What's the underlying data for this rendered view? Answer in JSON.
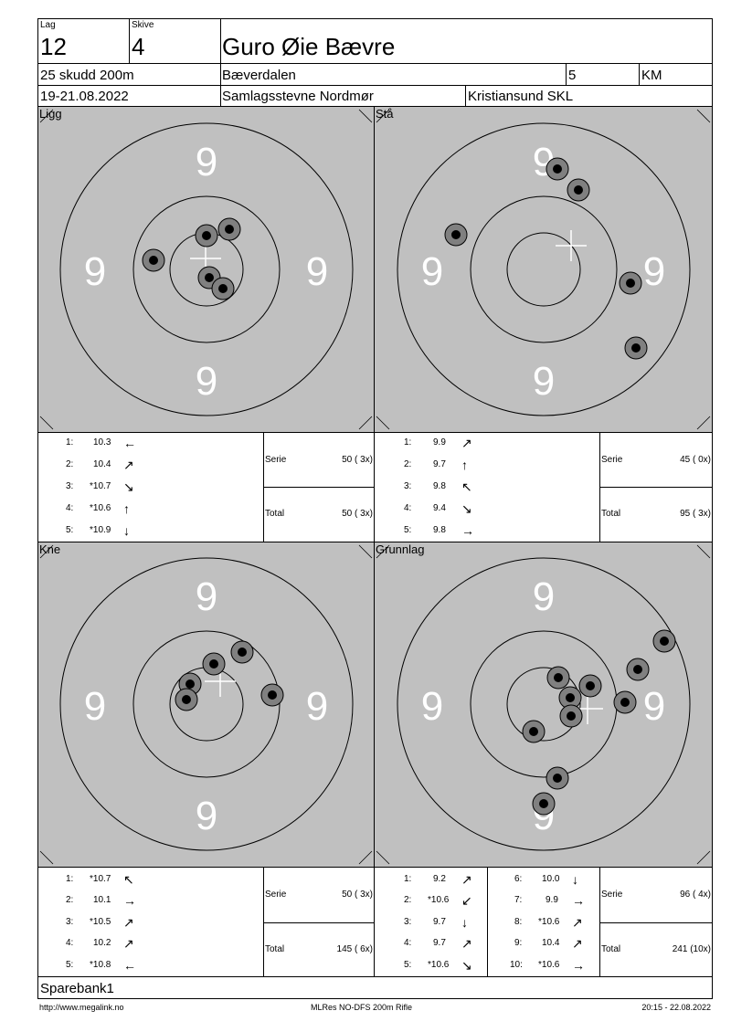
{
  "header": {
    "lag_label": "Lag",
    "lag_value": "12",
    "skive_label": "Skive",
    "skive_value": "4",
    "name": "Guro Øie Bævre",
    "program": "25 skudd 200m",
    "club": "Bæverdalen",
    "class": "5",
    "code": "KM",
    "dates": "19-21.08.2022",
    "event": "Samlagsstevne Nordmør",
    "organizer": "Kristiansund SKL"
  },
  "ring_label": "9",
  "targets": [
    {
      "title": "Ligg",
      "shots": [
        {
          "n": "1:",
          "score": "10.3",
          "dir": "←"
        },
        {
          "n": "2:",
          "score": "10.4",
          "dir": "↗"
        },
        {
          "n": "3:",
          "score": "*10.7",
          "dir": "↘"
        },
        {
          "n": "4:",
          "score": "*10.6",
          "dir": "↑"
        },
        {
          "n": "5:",
          "score": "*10.9",
          "dir": "↓"
        }
      ],
      "serie_label": "Serie",
      "serie_value": "50 ( 3x)",
      "total_label": "Total",
      "total_value": "50 ( 3x)"
    },
    {
      "title": "Stå",
      "shots": [
        {
          "n": "1:",
          "score": "9.9",
          "dir": "↗"
        },
        {
          "n": "2:",
          "score": "9.7",
          "dir": "↑"
        },
        {
          "n": "3:",
          "score": "9.8",
          "dir": "↖"
        },
        {
          "n": "4:",
          "score": "9.4",
          "dir": "↘"
        },
        {
          "n": "5:",
          "score": "9.8",
          "dir": "→"
        }
      ],
      "serie_label": "Serie",
      "serie_value": "45 ( 0x)",
      "total_label": "Total",
      "total_value": "95 ( 3x)"
    },
    {
      "title": "Kne",
      "shots": [
        {
          "n": "1:",
          "score": "*10.7",
          "dir": "↖"
        },
        {
          "n": "2:",
          "score": "10.1",
          "dir": "→"
        },
        {
          "n": "3:",
          "score": "*10.5",
          "dir": "↗"
        },
        {
          "n": "4:",
          "score": "10.2",
          "dir": "↗"
        },
        {
          "n": "5:",
          "score": "*10.8",
          "dir": "←"
        }
      ],
      "serie_label": "Serie",
      "serie_value": "50 ( 3x)",
      "total_label": "Total",
      "total_value": "145 ( 6x)"
    },
    {
      "title": "Grunnlag",
      "shots": [
        {
          "n": "1:",
          "score": "9.2",
          "dir": "↗"
        },
        {
          "n": "2:",
          "score": "*10.6",
          "dir": "↙"
        },
        {
          "n": "3:",
          "score": "9.7",
          "dir": "↓"
        },
        {
          "n": "4:",
          "score": "9.7",
          "dir": "↗"
        },
        {
          "n": "5:",
          "score": "*10.6",
          "dir": "↘"
        },
        {
          "n": "6:",
          "score": "10.0",
          "dir": "↓"
        },
        {
          "n": "7:",
          "score": "9.9",
          "dir": "→"
        },
        {
          "n": "8:",
          "score": "*10.6",
          "dir": "↗"
        },
        {
          "n": "9:",
          "score": "10.4",
          "dir": "↗"
        },
        {
          "n": "10:",
          "score": "*10.6",
          "dir": "→"
        }
      ],
      "serie_label": "Serie",
      "serie_value": "96 ( 4x)",
      "total_label": "Total",
      "total_value": "241 (10x)"
    }
  ],
  "sponsor": "Sparebank1",
  "footer": {
    "url": "http://www.megalink.no",
    "software": "MLRes NO-DFS 200m Rifle",
    "timestamp": "20:15 - 22.08.2022"
  },
  "colors": {
    "target_bg": "#c0c0c0",
    "shot_ring": "#808080",
    "shot_center": "#000000",
    "ring_number": "#ffffff"
  }
}
